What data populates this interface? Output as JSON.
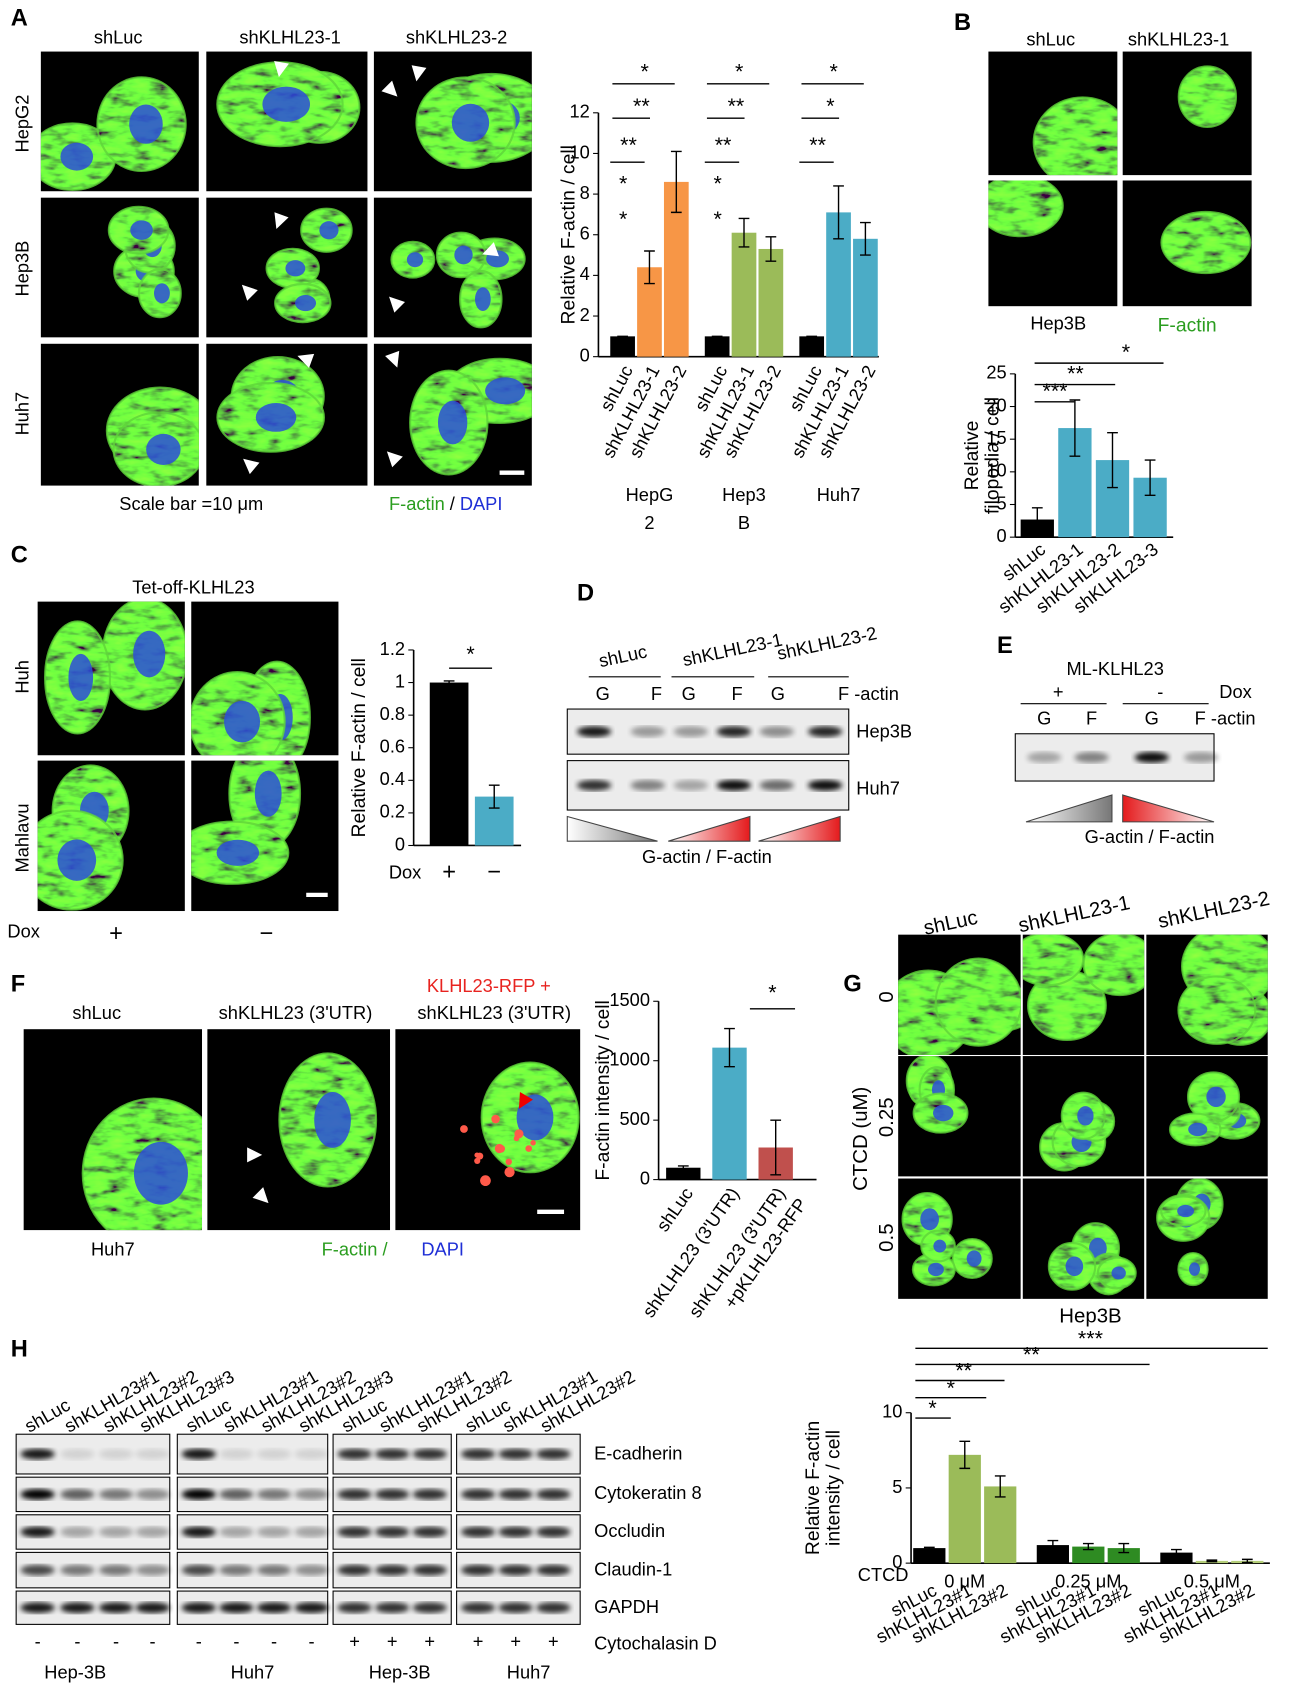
{
  "panels": {
    "A": {
      "letter": "A",
      "columns": [
        "shLuc",
        "shKLHL23-1",
        "shKLHL23-2"
      ],
      "rows": [
        "HepG2",
        "Hep3B",
        "Huh7"
      ],
      "scale_bar": "Scale bar =10 μm",
      "stain_green": "F-actin",
      "stain_sep": "/",
      "stain_blue": "DAPI"
    },
    "B": {
      "letter": "B",
      "columns": [
        "shLuc",
        "shKLHL23-1"
      ],
      "cell_line": "Hep3B",
      "stain": "F-actin"
    },
    "C": {
      "letter": "C",
      "title": "Tet-off-KLHL23",
      "rows": [
        "Huh",
        "Mahlavu"
      ],
      "dox_label": "Dox",
      "dox": [
        "+",
        "−"
      ]
    },
    "D": {
      "letter": "D",
      "groups": [
        "shLuc",
        "shKLHL23-1",
        "shKLHL23-2"
      ],
      "lanes": [
        "G",
        "F",
        "G",
        "F",
        "G",
        "F -actin"
      ],
      "blots": [
        "Hep3B",
        "Huh7"
      ],
      "caption": "G-actin / F-actin"
    },
    "E": {
      "letter": "E",
      "title": "ML-KLHL23",
      "dox": [
        "+",
        "-"
      ],
      "dox_label": "Dox",
      "lanes": [
        "G",
        "F",
        "G",
        "F -actin"
      ],
      "caption": "G-actin / F-actin"
    },
    "F": {
      "letter": "F",
      "columns": [
        "shLuc",
        "shKLHL23 (3'UTR)",
        "shKLHL23 (3'UTR)"
      ],
      "rescue": "KLHL23-RFP +",
      "cell_line": "Huh7",
      "stain_green": "F-actin /",
      "stain_blue": "DAPI"
    },
    "G": {
      "letter": "G",
      "columns": [
        "shLuc",
        "shKLHL23-1",
        "shKLHL23-2"
      ],
      "rows": [
        "0",
        "0.25",
        "0.5"
      ],
      "row_axis": "CTCD (uM)",
      "cell_line": "Hep3B"
    },
    "H": {
      "letter": "H",
      "lanes": [
        "shLuc",
        "shKLHL23#1",
        "shKLHL23#2",
        "shKLHL23#3",
        "shLuc",
        "shKLHL23#1",
        "shKLHL23#2",
        "shKLHL23#3",
        "shLuc",
        "shKLHL23#1",
        "shKLHL23#2",
        "shLuc",
        "shKLHL23#1",
        "shKLHL23#2"
      ],
      "proteins": [
        "E-cadherin",
        "Cytokeratin 8",
        "Occludin",
        "Claudin-1",
        "GAPDH"
      ],
      "treatment": "Cytochalasin D",
      "signs": [
        "-",
        "-",
        "-",
        "-",
        "-",
        "-",
        "-",
        "-",
        "+",
        "+",
        "+",
        "+",
        "+",
        "+"
      ],
      "cell_lines": [
        "Hep-3B",
        "Huh7",
        "Hep-3B",
        "Huh7"
      ]
    }
  },
  "chart_data": [
    {
      "type": "bar",
      "ylabel": [
        "Relative F-actin / cell"
      ],
      "categories": [
        "shLuc",
        "shKLHL23-1",
        "shKLHL23-2",
        "shLuc",
        "shKLHL23-1",
        "shKLHL23-2",
        "shLuc",
        "shKLHL23-1",
        "shKLHL23-2"
      ],
      "groups": [
        [
          "HepG",
          "2"
        ],
        [
          "Hep3",
          "B"
        ],
        [
          "Huh7"
        ]
      ],
      "values": [
        1,
        4.4,
        8.6,
        1,
        6.1,
        5.3,
        1,
        7.1,
        5.8
      ],
      "errors": [
        0,
        0.8,
        1.5,
        0,
        0.7,
        0.6,
        0,
        1.3,
        0.8
      ],
      "colors": [
        "#000000",
        "#f79646",
        "#f79646",
        "#000000",
        "#9bbb59",
        "#9bbb59",
        "#000000",
        "#4bacc6",
        "#4bacc6"
      ],
      "ylim": [
        0,
        12
      ],
      "yticks": [
        0,
        2,
        4,
        6,
        8,
        10,
        12
      ],
      "significance": [
        "*",
        "**",
        "**",
        "*",
        "*",
        "*",
        "**",
        "**",
        "*",
        "*",
        "*",
        "*",
        "**"
      ]
    },
    {
      "type": "bar",
      "ylabel": [
        "Relative",
        "filopodia / cell"
      ],
      "categories": [
        "shLuc",
        "shKLHL23-1",
        "shKLHL23-2",
        "shKLHL23-3"
      ],
      "values": [
        2.7,
        16.7,
        11.8,
        9.1
      ],
      "errors": [
        1.8,
        4.3,
        4.2,
        2.7
      ],
      "colors": [
        "#000000",
        "#4bacc6",
        "#4bacc6",
        "#4bacc6"
      ],
      "ylim": [
        0,
        25
      ],
      "yticks": [
        0,
        5,
        10,
        15,
        20,
        25
      ],
      "significance": [
        "***",
        "**",
        "*"
      ]
    },
    {
      "type": "bar",
      "ylabel": [
        "Relative F-actin / cell"
      ],
      "xlabel": "Dox",
      "categories": [
        "+",
        "−"
      ],
      "values": [
        1,
        0.3
      ],
      "errors": [
        0.01,
        0.07
      ],
      "colors": [
        "#000000",
        "#4bacc6"
      ],
      "ylim": [
        0,
        1.2
      ],
      "yticks": [
        0,
        0.2,
        0.4,
        0.6,
        0.8,
        1,
        1.2
      ],
      "significance": [
        "*"
      ]
    },
    {
      "type": "bar",
      "ylabel": [
        "F-actin intensity / cell"
      ],
      "categories": [
        "shLuc",
        "shKLHL23 (3'UTR)",
        "shKLHL23 (3'UTR)"
      ],
      "third_label_line2": "+pKLHL23-RFP",
      "values": [
        100,
        1110,
        270
      ],
      "errors": [
        15,
        160,
        230
      ],
      "colors": [
        "#000000",
        "#4bacc6",
        "#c0504d"
      ],
      "ylim": [
        0,
        1500
      ],
      "yticks": [
        0,
        500,
        1000,
        1500
      ],
      "significance": [
        "*"
      ]
    },
    {
      "type": "bar",
      "ylabel": [
        "Relative F-actin",
        "intensity / cell"
      ],
      "group_axis_label": "CTCD",
      "categories": [
        "shLuc",
        "shKLHL23#1",
        "shKLHL23#2",
        "shLuc",
        "shKLHL23#1",
        "shKLHL23#2",
        "shLuc",
        "shKLHL23#1",
        "shKLHL23#2"
      ],
      "groups": [
        [
          "0 μM"
        ],
        [
          "0.25 μM"
        ],
        [
          "0.5 μM"
        ]
      ],
      "values": [
        1,
        7.2,
        5.1,
        1.2,
        1.1,
        1.0,
        0.7,
        0.15,
        0.15
      ],
      "errors": [
        0.05,
        0.9,
        0.7,
        0.3,
        0.2,
        0.3,
        0.2,
        0.05,
        0.1
      ],
      "colors": [
        "#000000",
        "#9bbb59",
        "#9bbb59",
        "#000000",
        "#2e8b22",
        "#2e8b22",
        "#000000",
        "#b5cf7a",
        "#b5cf7a"
      ],
      "ylim": [
        0,
        10
      ],
      "yticks": [
        0,
        5,
        10
      ],
      "significance": [
        "*",
        "*",
        "**",
        "**",
        "***"
      ]
    }
  ]
}
